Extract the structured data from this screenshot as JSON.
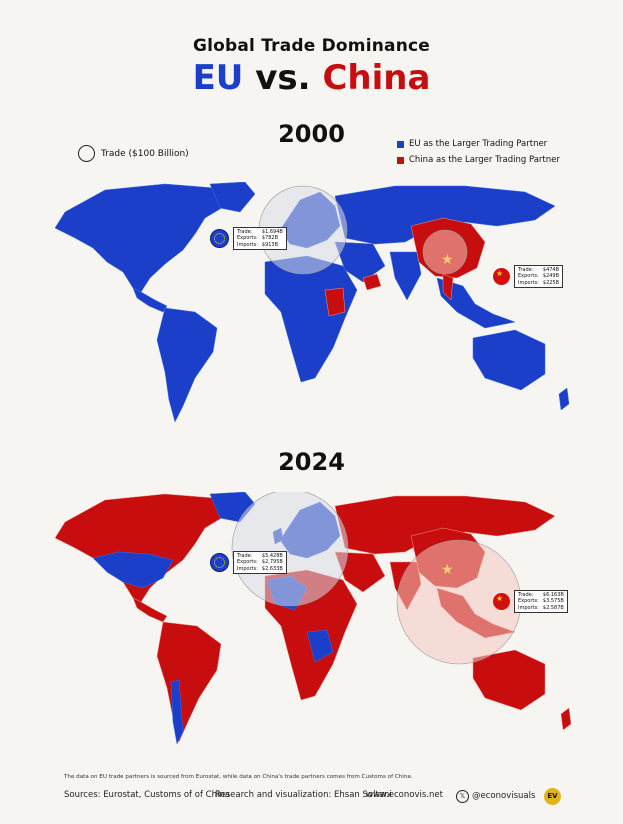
{
  "header": {
    "title_line1": "Global Trade Dominance",
    "title_eu": "EU",
    "title_vs": "vs.",
    "title_china": "China"
  },
  "legend": {
    "trade_scale": "Trade ($100 Billion)",
    "eu_label": "EU as the Larger Trading Partner",
    "china_label": "China as the Larger Trading Partner",
    "eu_color": "#1b3fc8",
    "china_color": "#c70d0d"
  },
  "maps": [
    {
      "year": "2000",
      "dominant_background": "eu",
      "eu": {
        "trade_label": "Trade:",
        "trade": "$1,694B",
        "exports_label": "Exports:",
        "exports": "$782B",
        "imports_label": "Imports:",
        "imports": "$913B"
      },
      "china": {
        "trade_label": "Trade:",
        "trade": "$474B",
        "exports_label": "Exports:",
        "exports": "$249B",
        "imports_label": "Imports:",
        "imports": "$225B"
      }
    },
    {
      "year": "2024",
      "dominant_background": "china",
      "eu": {
        "trade_label": "Trade:",
        "trade": "$5,428B",
        "exports_label": "Exports:",
        "exports": "$2,795B",
        "imports_label": "Imports:",
        "imports": "$2,633B"
      },
      "china": {
        "trade_label": "Trade:",
        "trade": "$6,163B",
        "exports_label": "Exports:",
        "exports": "$3,575B",
        "imports_label": "Imports:",
        "imports": "$2,587B"
      }
    }
  ],
  "footer": {
    "note": "The data on EU trade partners is sourced from Eurostat, while data on China's trade partners comes from Customs of China.",
    "sources": "Sources: Eurostat, Customs of of China",
    "credit": "Research and visualization: Ehsan Soltani",
    "website": "www.econovis.net",
    "handle": "@econovisuals",
    "logo_text": "EV"
  }
}
